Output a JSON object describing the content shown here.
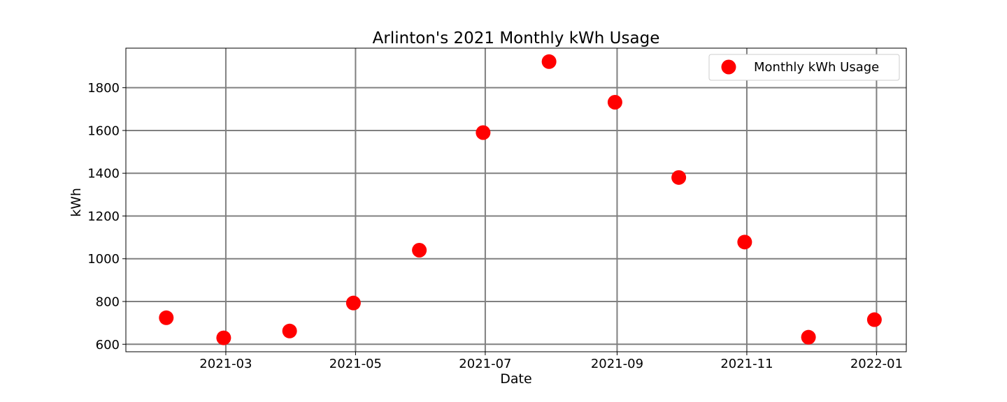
{
  "chart_data": {
    "type": "scatter",
    "title": "Arlinton's 2021 Monthly kWh Usage",
    "xlabel": "Date",
    "ylabel": "kWh",
    "x_type": "date",
    "xlim": [
      "2021-01-13",
      "2022-01-15"
    ],
    "ylim": [
      565,
      1985
    ],
    "x_ticks": [
      "2021-03",
      "2021-05",
      "2021-07",
      "2021-09",
      "2021-11",
      "2022-01"
    ],
    "y_ticks": [
      600,
      800,
      1000,
      1200,
      1400,
      1600,
      1800
    ],
    "grid": true,
    "legend_position": "top-right",
    "series": [
      {
        "name": "Monthly kWh Usage",
        "color": "#ff0000",
        "marker": "circle",
        "x": [
          "2021-02-01",
          "2021-02-28",
          "2021-03-31",
          "2021-04-30",
          "2021-05-31",
          "2021-06-30",
          "2021-07-31",
          "2021-08-31",
          "2021-09-30",
          "2021-10-31",
          "2021-11-30",
          "2021-12-31"
        ],
        "y": [
          724,
          630,
          662,
          793,
          1040,
          1590,
          1922,
          1732,
          1380,
          1078,
          633,
          715
        ]
      }
    ]
  }
}
